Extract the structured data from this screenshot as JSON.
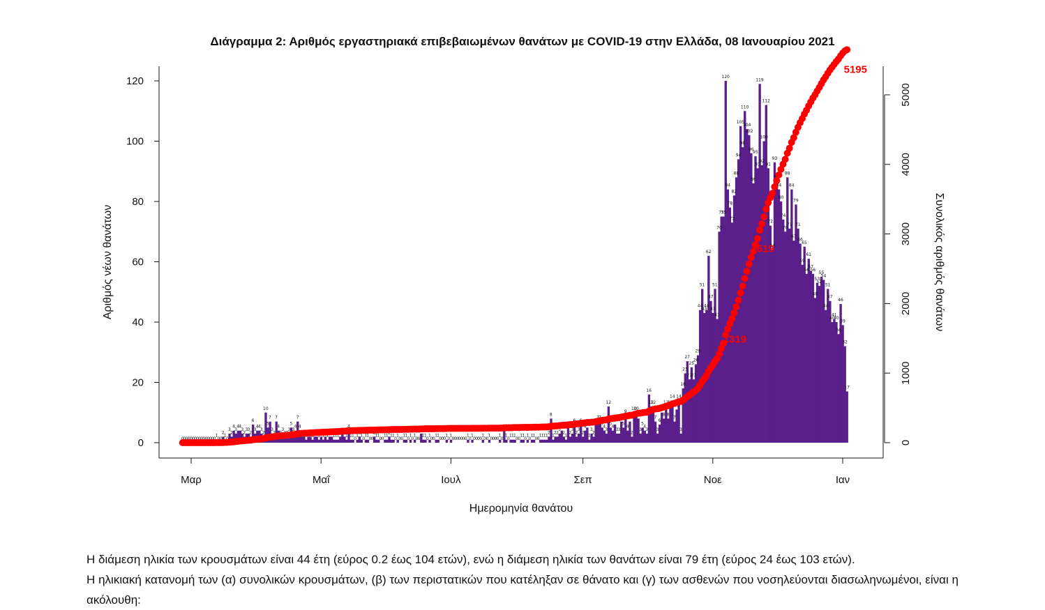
{
  "chart_data": {
    "type": "bar+line",
    "title": "Διάγραμμα 2: Αριθμός εργαστηριακά επιβεβαιωμένων θανάτων με COVID-19 στην Ελλάδα, 08 Ιανουαρίου 2021",
    "xlabel": "Ημερομηνία θανάτου",
    "ylabel_left": "Αριθμός νέων θανάτων",
    "ylabel_right": "Συνολικός αριθμός θανάτων",
    "ylim_left": [
      0,
      120
    ],
    "yticks_left": [
      0,
      20,
      40,
      60,
      80,
      100,
      120
    ],
    "ylim_right": [
      0,
      5200
    ],
    "yticks_right": [
      0,
      1000,
      2000,
      3000,
      4000,
      5000
    ],
    "x_start_date": "2020-02-26",
    "x_end_date": "2021-01-07",
    "x_ticks": [
      {
        "label": "Μαρ",
        "date": "2020-03-01"
      },
      {
        "label": "Μαΐ",
        "date": "2020-05-01"
      },
      {
        "label": "Ιουλ",
        "date": "2020-07-01"
      },
      {
        "label": "Σεπ",
        "date": "2020-09-01"
      },
      {
        "label": "Νοε",
        "date": "2020-11-01"
      },
      {
        "label": "Ιαν",
        "date": "2021-01-01"
      }
    ],
    "bar_color": "#5a1f8a",
    "line_color": "#ff0000",
    "daily_deaths": [
      0,
      0,
      0,
      0,
      0,
      0,
      0,
      0,
      0,
      0,
      0,
      0,
      0,
      0,
      0,
      0,
      1,
      0,
      0,
      2,
      1,
      0,
      3,
      2,
      4,
      3,
      4,
      4,
      3,
      2,
      3,
      3,
      2,
      6,
      3,
      4,
      4,
      3,
      2,
      10,
      5,
      7,
      3,
      2,
      7,
      4,
      2,
      3,
      2,
      2,
      3,
      5,
      3,
      4,
      7,
      4,
      2,
      2,
      1,
      2,
      2,
      1,
      2,
      2,
      1,
      2,
      1,
      2,
      1,
      2,
      2,
      1,
      1,
      1,
      2,
      3,
      2,
      1,
      4,
      1,
      1,
      0,
      1,
      2,
      1,
      0,
      1,
      1,
      0,
      0,
      2,
      1,
      1,
      0,
      0,
      1,
      1,
      2,
      1,
      1,
      0,
      1,
      0,
      0,
      1,
      1,
      0,
      1,
      0,
      1,
      0,
      0,
      3,
      1,
      1,
      0,
      1,
      0,
      0,
      1,
      1,
      0,
      0,
      0,
      1,
      0,
      1,
      0,
      0,
      0,
      0,
      0,
      0,
      0,
      1,
      0,
      1,
      0,
      0,
      0,
      0,
      1,
      0,
      0,
      1,
      0,
      0,
      0,
      0,
      1,
      0,
      4,
      1,
      0,
      1,
      1,
      1,
      0,
      0,
      1,
      1,
      0,
      1,
      0,
      1,
      1,
      0,
      0,
      1,
      1,
      1,
      1,
      2,
      8,
      1,
      2,
      2,
      3,
      4,
      2,
      1,
      5,
      2,
      3,
      6,
      2,
      3,
      6,
      2,
      4,
      5,
      1,
      3,
      2,
      6,
      7,
      7,
      5,
      4,
      3,
      12,
      5,
      4,
      6,
      3,
      3,
      7,
      5,
      9,
      4,
      7,
      2,
      10,
      10,
      8,
      3,
      5,
      4,
      3,
      16,
      12,
      12,
      7,
      3,
      6,
      10,
      8,
      12,
      8,
      12,
      14,
      7,
      11,
      14,
      3,
      18,
      23,
      27,
      21,
      25,
      21,
      26,
      29,
      44,
      51,
      43,
      44,
      62,
      47,
      43,
      51,
      41,
      70,
      75,
      75,
      120,
      84,
      78,
      73,
      82,
      88,
      94,
      105,
      98,
      110,
      104,
      102,
      96,
      86,
      95,
      91,
      119,
      92,
      100,
      112,
      91,
      72,
      64,
      93,
      87,
      84,
      80,
      74,
      70,
      88,
      71,
      84,
      67,
      79,
      71,
      66,
      59,
      65,
      56,
      61,
      57,
      56,
      48,
      53,
      52,
      55,
      54,
      44,
      51,
      47,
      40,
      41,
      40,
      36,
      46,
      39,
      32,
      17
    ],
    "cumulative_labels": [
      {
        "value": 1319,
        "date": "2020-11-12"
      },
      {
        "value": 2619,
        "date": "2020-11-25"
      },
      {
        "value": 5195,
        "date": "2021-01-07"
      }
    ]
  },
  "body_text": {
    "line1": "Η διάμεση ηλικία των κρουσμάτων είναι 44 έτη (εύρος 0.2 έως 104 ετών), ενώ η διάμεση ηλικία των θανάτων είναι 79 έτη (εύρος 24 έως 103 ετών).",
    "line2": "Η ηλικιακή κατανομή των (α) συνολικών κρουσμάτων, (β) των περιστατικών που κατέληξαν σε θάνατο και (γ) των ασθενών που νοσηλεύονται διασωληνωμένοι, είναι η ακόλουθη:"
  }
}
